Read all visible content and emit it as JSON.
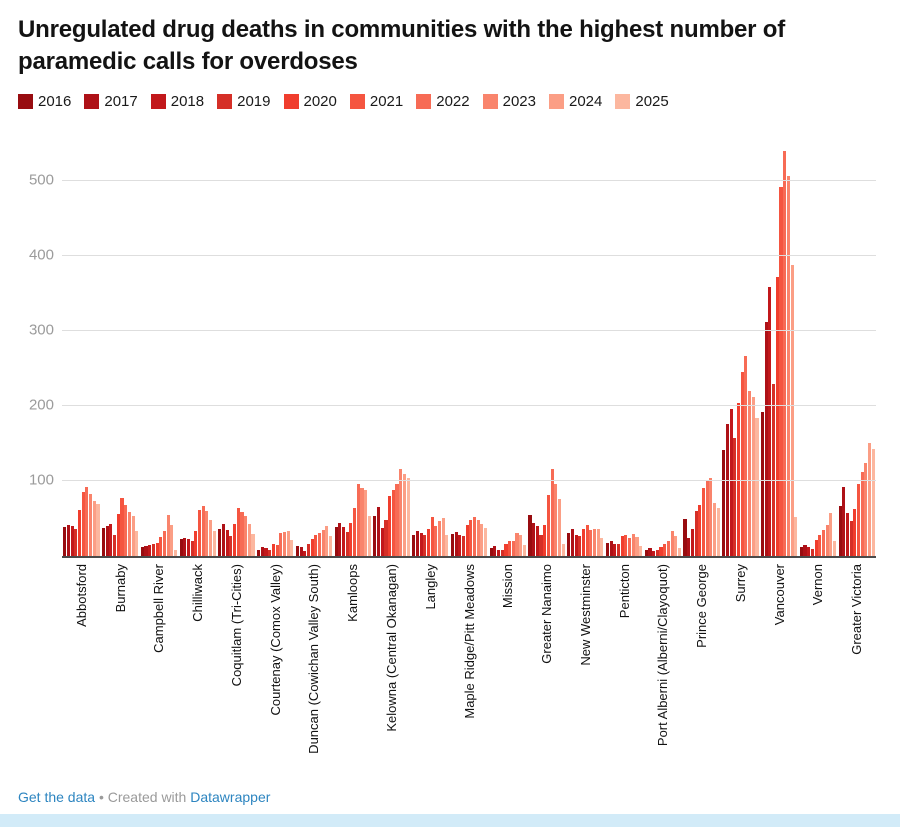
{
  "header": {
    "title": "Unregulated drug deaths in communities with the highest number of paramedic calls for overdoses"
  },
  "chart_data": {
    "type": "bar",
    "title": "Unregulated drug deaths in communities with the highest number of paramedic calls for overdoses",
    "xlabel": "",
    "ylabel": "",
    "ylim": [
      0,
      560
    ],
    "yticks": [
      100,
      200,
      300,
      400,
      500
    ],
    "grid": true,
    "legend_position": "top",
    "categories": [
      "Abbotsford",
      "Burnaby",
      "Campbell River",
      "Chilliwack",
      "Coquitlam (Tri-Cities)",
      "Courtenay (Comox Valley)",
      "Duncan (Cowichan Valley South)",
      "Kamloops",
      "Kelowna (Central Okanagan)",
      "Langley",
      "Maple Ridge/Pitt Meadows",
      "Mission",
      "Greater Nanaimo",
      "New Westminster",
      "Penticton",
      "Port Alberni (Alberni/Clayoquot)",
      "Prince George",
      "Surrey",
      "Vancouver",
      "Vernon",
      "Greater Victoria"
    ],
    "series": [
      {
        "name": "2016",
        "color": "#980c10",
        "values": [
          39,
          38,
          12,
          23,
          36,
          9,
          14,
          39,
          54,
          29,
          30,
          11,
          55,
          31,
          18,
          8,
          50,
          142,
          192,
          13,
          67
        ]
      },
      {
        "name": "2017",
        "color": "#ae1117",
        "values": [
          42,
          40,
          14,
          25,
          43,
          12,
          12,
          45,
          66,
          34,
          33,
          14,
          45,
          36,
          21,
          11,
          25,
          176,
          313,
          15,
          93
        ]
      },
      {
        "name": "2018",
        "color": "#c2181b",
        "values": [
          40,
          43,
          15,
          23,
          35,
          11,
          7,
          39,
          38,
          31,
          29,
          9,
          40,
          28,
          17,
          7,
          37,
          196,
          359,
          12,
          58
        ]
      },
      {
        "name": "2019",
        "color": "#d52f27",
        "values": [
          36,
          28,
          16,
          20,
          27,
          8,
          17,
          33,
          48,
          28,
          27,
          8,
          29,
          27,
          16,
          9,
          60,
          158,
          230,
          10,
          47
        ]
      },
      {
        "name": "2020",
        "color": "#f03d2d",
        "values": [
          62,
          57,
          18,
          34,
          43,
          16,
          23,
          45,
          80,
          36,
          42,
          16,
          42,
          37,
          27,
          12,
          69,
          205,
          372,
          22,
          63
        ]
      },
      {
        "name": "2021",
        "color": "#f55540",
        "values": [
          86,
          78,
          26,
          62,
          65,
          15,
          28,
          64,
          88,
          52,
          48,
          20,
          82,
          42,
          29,
          17,
          91,
          246,
          493,
          28,
          97
        ]
      },
      {
        "name": "2022",
        "color": "#f76b55",
        "values": [
          92,
          68,
          34,
          67,
          59,
          31,
          31,
          96,
          96,
          41,
          52,
          21,
          117,
          35,
          24,
          21,
          102,
          267,
          540,
          35,
          112
        ]
      },
      {
        "name": "2023",
        "color": "#f9846c",
        "values": [
          83,
          59,
          55,
          60,
          54,
          33,
          35,
          91,
          116,
          47,
          48,
          31,
          96,
          37,
          30,
          34,
          104,
          220,
          507,
          42,
          125
        ]
      },
      {
        "name": "2024",
        "color": "#fb9e85",
        "values": [
          74,
          54,
          42,
          49,
          43,
          34,
          41,
          88,
          110,
          51,
          43,
          28,
          76,
          36,
          26,
          27,
          71,
          212,
          389,
          58,
          151
        ]
      },
      {
        "name": "2025",
        "color": "#fcb79f",
        "values": [
          70,
          34,
          8,
          34,
          30,
          22,
          27,
          54,
          104,
          29,
          38,
          15,
          16,
          24,
          14,
          11,
          65,
          185,
          53,
          20,
          143
        ]
      }
    ]
  },
  "footer": {
    "link_get_data": "Get the data",
    "separator": "•",
    "created_with": "Created with",
    "link_datawrapper": "Datawrapper"
  }
}
